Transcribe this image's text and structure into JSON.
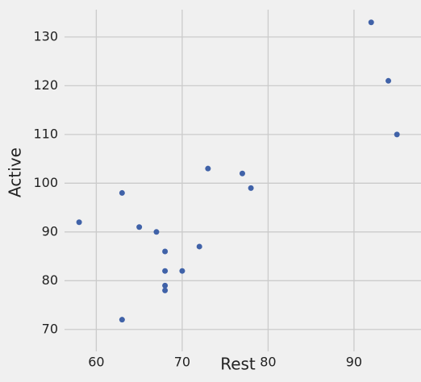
{
  "chart_data": {
    "type": "scatter",
    "x_label": "Rest",
    "y_label": "Active",
    "x": [
      92,
      94,
      95,
      73,
      77,
      78,
      63,
      58,
      65,
      67,
      68,
      72,
      68,
      70,
      68,
      68,
      63
    ],
    "values": [
      133,
      121,
      110,
      103,
      102,
      99,
      98,
      92,
      91,
      90,
      86,
      87,
      82,
      82,
      79,
      78,
      72
    ],
    "color": "#4062a8",
    "xlim": [
      56.3,
      97.8
    ],
    "xticks": [
      60,
      70,
      80,
      90
    ],
    "ylim": [
      65.5,
      135.6
    ],
    "yticks": [
      70,
      80,
      90,
      100,
      110,
      120,
      130
    ],
    "grid": true
  }
}
